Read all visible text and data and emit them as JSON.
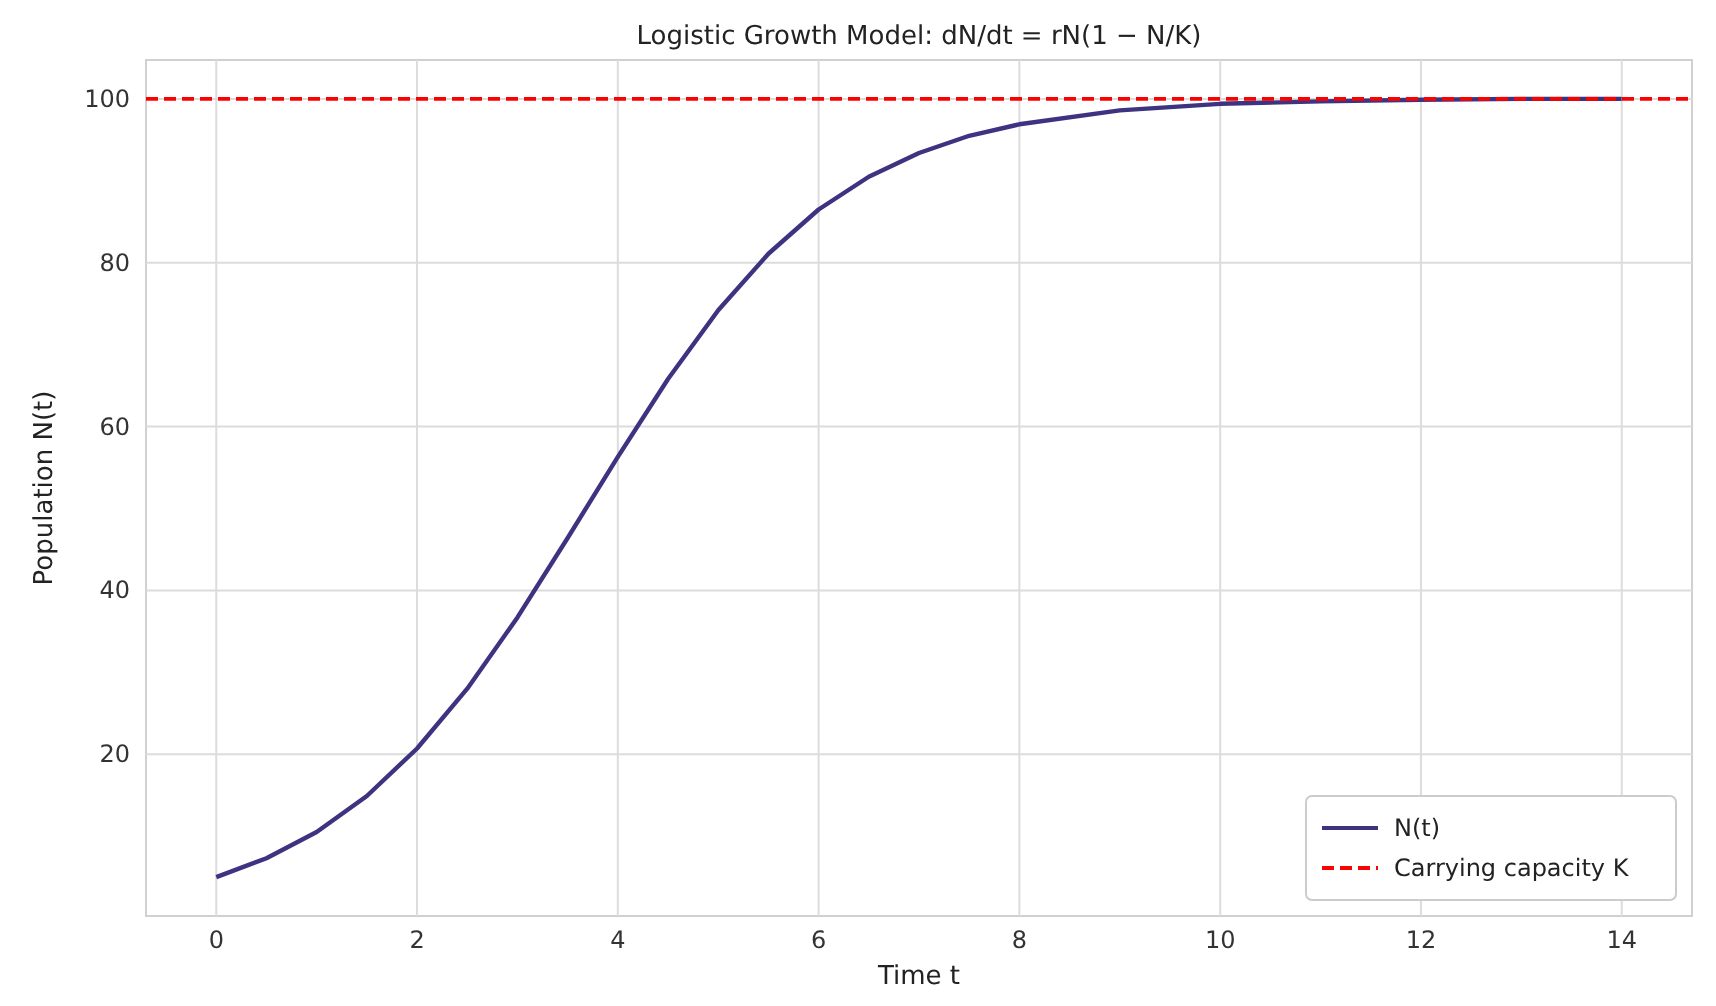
{
  "chart_data": {
    "type": "line",
    "title": "Logistic Growth Model: dN/dt = rN(1 − N/K)",
    "xlabel": "Time t",
    "ylabel": "Population N(t)",
    "x": [
      0,
      0.5,
      1,
      1.5,
      2,
      2.5,
      3,
      3.5,
      4,
      4.5,
      5,
      5.5,
      6,
      6.5,
      7,
      7.5,
      8,
      9,
      10,
      11,
      12,
      13,
      14
    ],
    "series": [
      {
        "name": "N(t)",
        "color": "#3d3381",
        "values": [
          5.0,
          7.3,
          10.5,
          14.9,
          20.7,
          28.0,
          36.7,
          46.4,
          56.3,
          65.8,
          74.2,
          81.1,
          86.5,
          90.5,
          93.4,
          95.5,
          96.9,
          98.6,
          99.4,
          99.7,
          99.9,
          100,
          100
        ]
      }
    ],
    "xlim": [
      -0.7,
      14.7
    ],
    "ylim": [
      0.25,
      104.75
    ],
    "xticks": [
      0,
      2,
      4,
      6,
      8,
      10,
      12,
      14
    ],
    "yticks": [
      20,
      40,
      60,
      80,
      100
    ],
    "ref_lines": [
      {
        "axis": "y",
        "value": 100,
        "label": "Carrying capacity K",
        "color": "#ff0000",
        "line_style": "dashed"
      }
    ],
    "grid": true,
    "legend": "bottom right",
    "line_style": "solid",
    "marker": "none"
  }
}
